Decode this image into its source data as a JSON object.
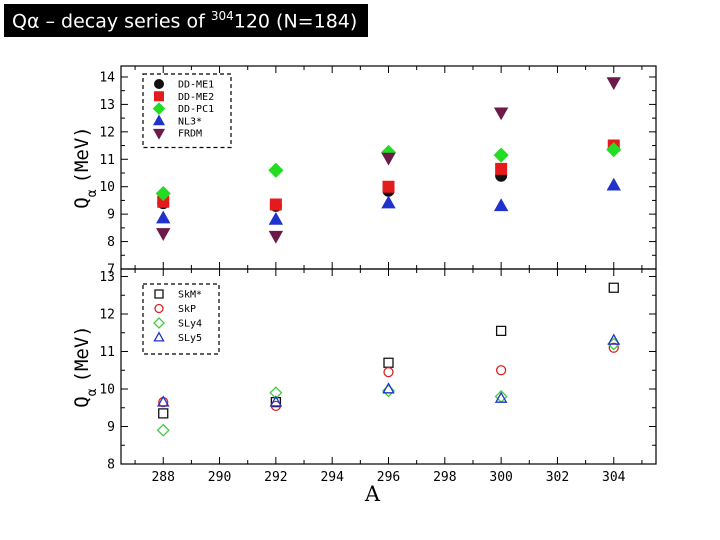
{
  "slide": {
    "title_prefix": "Qα – decay series of ",
    "title_sup": "304",
    "title_rest": "120 (N=184)"
  },
  "chart_data": [
    {
      "type": "scatter",
      "ylabel_symbol": "Q",
      "ylabel_sub": "α",
      "ylabel_unit": "(MeV)",
      "xlabel": "",
      "xlim": [
        286.5,
        305.5
      ],
      "ylim": [
        7,
        14.4
      ],
      "yticks": [
        7,
        8,
        9,
        10,
        11,
        12,
        13,
        14
      ],
      "grid": false,
      "legend_position": "top-left",
      "series": [
        {
          "name": "DD-ME1",
          "marker": "filled-circle",
          "color": "#111111",
          "x": [
            288,
            292,
            296,
            300,
            304
          ],
          "y": [
            9.4,
            9.3,
            9.85,
            10.4,
            11.4
          ]
        },
        {
          "name": "DD-ME2",
          "marker": "filled-square",
          "color": "#e41a1c",
          "x": [
            288,
            292,
            296,
            300,
            304
          ],
          "y": [
            9.45,
            9.35,
            10.0,
            10.65,
            11.5
          ]
        },
        {
          "name": "DD-PC1",
          "marker": "filled-diamond",
          "color": "#22dd22",
          "x": [
            288,
            292,
            296,
            300,
            304
          ],
          "y": [
            9.75,
            10.6,
            11.25,
            11.15,
            11.35
          ]
        },
        {
          "name": "NL3*",
          "marker": "filled-triangle-up",
          "color": "#1f33cc",
          "x": [
            288,
            292,
            296,
            300,
            304
          ],
          "y": [
            8.85,
            8.8,
            9.4,
            9.3,
            10.05
          ]
        },
        {
          "name": "FRDM",
          "marker": "filled-triangle-down",
          "color": "#6b1a4a",
          "x": [
            288,
            292,
            296,
            300,
            304
          ],
          "y": [
            8.3,
            8.2,
            11.05,
            12.7,
            13.8
          ]
        }
      ]
    },
    {
      "type": "scatter",
      "ylabel_symbol": "Q",
      "ylabel_sub": "α",
      "ylabel_unit": "(MeV)",
      "xlabel": "A",
      "xlim": [
        286.5,
        305.5
      ],
      "ylim": [
        8,
        13.2
      ],
      "xticks": [
        288,
        290,
        292,
        294,
        296,
        298,
        300,
        302,
        304
      ],
      "yticks": [
        8,
        9,
        10,
        11,
        12,
        13
      ],
      "grid": false,
      "legend_position": "top-left",
      "series": [
        {
          "name": "SkM*",
          "marker": "open-square",
          "color": "#111111",
          "x": [
            288,
            292,
            296,
            300,
            304
          ],
          "y": [
            9.35,
            9.65,
            10.7,
            11.55,
            12.7
          ]
        },
        {
          "name": "SkP",
          "marker": "open-circle",
          "color": "#dd2222",
          "x": [
            288,
            292,
            296,
            300,
            304
          ],
          "y": [
            9.65,
            9.55,
            10.45,
            10.5,
            11.1
          ]
        },
        {
          "name": "SLy4",
          "marker": "open-diamond",
          "color": "#44cc44",
          "x": [
            288,
            292,
            296,
            300,
            304
          ],
          "y": [
            8.9,
            9.9,
            9.95,
            9.8,
            11.2
          ]
        },
        {
          "name": "SLy5",
          "marker": "open-triangle-up",
          "color": "#1f33cc",
          "x": [
            288,
            292,
            296,
            300,
            304
          ],
          "y": [
            9.65,
            9.65,
            10.0,
            9.75,
            11.3
          ]
        }
      ]
    }
  ]
}
